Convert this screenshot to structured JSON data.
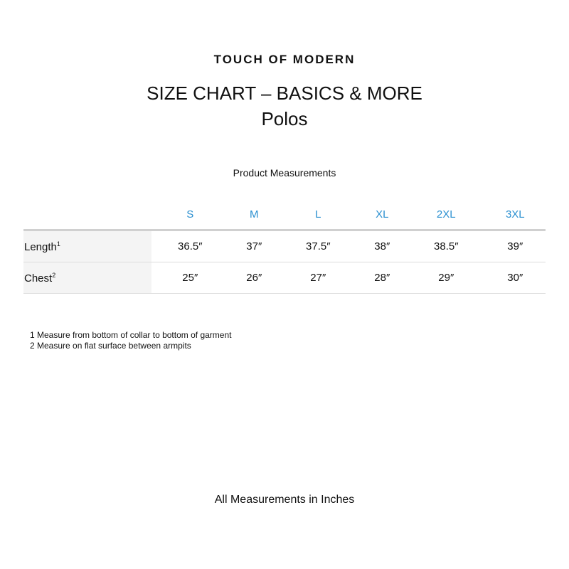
{
  "brand": "TOUCH OF MODERN",
  "title": "SIZE CHART – BASICS & MORE",
  "subtitle": "Polos",
  "section_title": "Product Measurements",
  "sizes": [
    "S",
    "M",
    "L",
    "XL",
    "2XL",
    "3XL"
  ],
  "rows": [
    {
      "label": "Length",
      "note": "1",
      "values": [
        "36.5″",
        "37″",
        "37.5″",
        "38″",
        "38.5″",
        "39″"
      ]
    },
    {
      "label": "Chest",
      "note": "2",
      "values": [
        "25″",
        "26″",
        "27″",
        "28″",
        "29″",
        "30″"
      ]
    }
  ],
  "notes": [
    "1 Measure from bottom of collar to bottom of garment",
    "2 Measure on flat surface between armpits"
  ],
  "footer": "All Measurements in Inches",
  "colors": {
    "size_header": "#2a8fd0"
  }
}
